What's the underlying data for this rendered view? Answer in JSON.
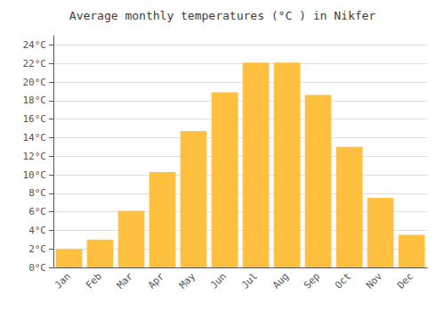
{
  "chart_data": {
    "type": "bar",
    "title": "Average monthly temperatures (°C ) in Nikfer",
    "categories": [
      "Jan",
      "Feb",
      "Mar",
      "Apr",
      "May",
      "Jun",
      "Jul",
      "Aug",
      "Sep",
      "Oct",
      "Nov",
      "Dec"
    ],
    "values": [
      2.0,
      3.0,
      6.1,
      10.3,
      14.7,
      18.9,
      22.1,
      22.1,
      18.6,
      13.0,
      7.5,
      3.5
    ],
    "color": "#FFC040",
    "ylim": [
      0,
      25
    ],
    "yticks": [
      {
        "value": 0,
        "label": "0°C"
      },
      {
        "value": 2,
        "label": "2°C"
      },
      {
        "value": 4,
        "label": "4°C"
      },
      {
        "value": 6,
        "label": "6°C"
      },
      {
        "value": 8,
        "label": "8°C"
      },
      {
        "value": 10,
        "label": "10°C"
      },
      {
        "value": 12,
        "label": "12°C"
      },
      {
        "value": 14,
        "label": "14°C"
      },
      {
        "value": 16,
        "label": "16°C"
      },
      {
        "value": 18,
        "label": "18°C"
      },
      {
        "value": 20,
        "label": "20°C"
      },
      {
        "value": 22,
        "label": "22°C"
      },
      {
        "value": 24,
        "label": "24°C"
      }
    ],
    "grid": true
  }
}
